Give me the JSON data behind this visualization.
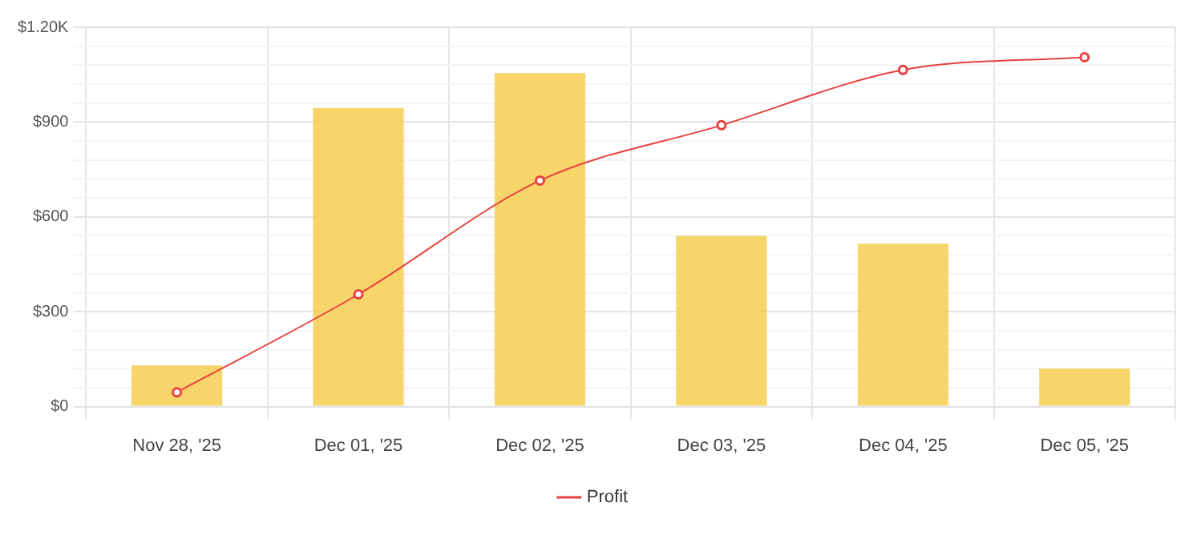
{
  "chart_data": {
    "type": "bar",
    "categories": [
      "Nov 28, '25",
      "Dec 01, '25",
      "Dec 02, '25",
      "Dec 03, '25",
      "Dec 04, '25",
      "Dec 05, '25"
    ],
    "series": [
      {
        "color": "#f7cf55",
        "values": [
          130,
          945,
          1055,
          540,
          515,
          120
        ]
      },
      {
        "type": "line",
        "name": "Profit",
        "color": "#e8413f",
        "values": [
          45,
          355,
          715,
          890,
          1065,
          1105
        ]
      }
    ],
    "ylim": [
      0,
      1200
    ],
    "yticks": [
      {
        "value": 0,
        "label": "$0"
      },
      {
        "value": 60,
        "label": null
      },
      {
        "value": 120,
        "label": null
      },
      {
        "value": 180,
        "label": null
      },
      {
        "value": 240,
        "label": null
      },
      {
        "value": 300,
        "label": "$300"
      },
      {
        "value": 360,
        "label": null
      },
      {
        "value": 420,
        "label": null
      },
      {
        "value": 480,
        "label": null
      },
      {
        "value": 540,
        "label": null
      },
      {
        "value": 600,
        "label": "$600"
      },
      {
        "value": 660,
        "label": null
      },
      {
        "value": 720,
        "label": null
      },
      {
        "value": 780,
        "label": null
      },
      {
        "value": 840,
        "label": null
      },
      {
        "value": 900,
        "label": "$900"
      },
      {
        "value": 960,
        "label": null
      },
      {
        "value": 1020,
        "label": null
      },
      {
        "value": 1080,
        "label": null
      },
      {
        "value": 1140,
        "label": null
      },
      {
        "value": 1200,
        "label": "$1.20K"
      }
    ],
    "grid": true,
    "legend": "bottom",
    "marker": "circle",
    "line_style": "solid"
  }
}
